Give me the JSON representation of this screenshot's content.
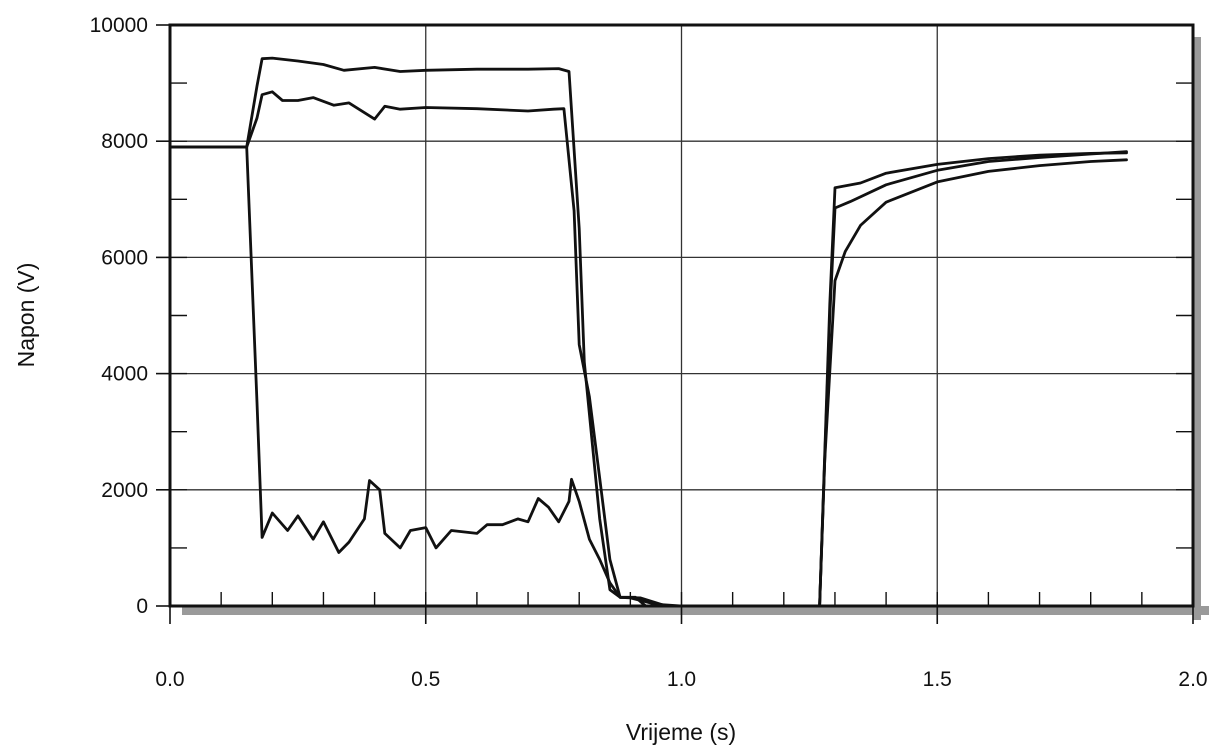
{
  "chart_data": {
    "type": "line",
    "title": "",
    "xlabel": "Vrijeme (s)",
    "ylabel": "Napon (V)",
    "xlim": [
      0,
      2.0
    ],
    "ylim": [
      0,
      10000
    ],
    "x_ticks": [
      0.0,
      0.5,
      1.0,
      1.5,
      2.0
    ],
    "x_tick_labels": [
      "0.0",
      "0.5",
      "1.0",
      "1.5",
      "2.0"
    ],
    "y_ticks": [
      0,
      2000,
      4000,
      6000,
      8000,
      10000
    ],
    "y_tick_labels": [
      "0",
      "2000",
      "4000",
      "6000",
      "8000",
      "10000"
    ],
    "grid": true,
    "legend": "none",
    "line_color": "#111111",
    "frame_shadow_color": "#9a9a9a",
    "series": [
      {
        "points": [
          [
            0.0,
            7900
          ],
          [
            0.15,
            7900
          ],
          [
            0.17,
            8950
          ],
          [
            0.18,
            9420
          ],
          [
            0.2,
            9430
          ],
          [
            0.25,
            9380
          ],
          [
            0.3,
            9320
          ],
          [
            0.34,
            9220
          ],
          [
            0.4,
            9270
          ],
          [
            0.45,
            9200
          ],
          [
            0.5,
            9220
          ],
          [
            0.6,
            9240
          ],
          [
            0.7,
            9240
          ],
          [
            0.76,
            9250
          ],
          [
            0.78,
            9200
          ],
          [
            0.8,
            6500
          ],
          [
            0.81,
            4200
          ],
          [
            0.84,
            1500
          ],
          [
            0.86,
            280
          ],
          [
            0.88,
            150
          ],
          [
            0.9,
            140
          ],
          [
            0.95,
            30
          ],
          [
            1.0,
            0
          ],
          [
            1.27,
            0
          ],
          [
            1.29,
            5200
          ],
          [
            1.3,
            7200
          ],
          [
            1.35,
            7280
          ],
          [
            1.4,
            7450
          ],
          [
            1.5,
            7600
          ],
          [
            1.6,
            7700
          ],
          [
            1.7,
            7760
          ],
          [
            1.8,
            7790
          ],
          [
            1.87,
            7800
          ]
        ]
      },
      {
        "points": [
          [
            0.0,
            7900
          ],
          [
            0.15,
            7900
          ],
          [
            0.17,
            8400
          ],
          [
            0.18,
            8800
          ],
          [
            0.2,
            8850
          ],
          [
            0.22,
            8700
          ],
          [
            0.25,
            8700
          ],
          [
            0.28,
            8750
          ],
          [
            0.32,
            8620
          ],
          [
            0.35,
            8660
          ],
          [
            0.4,
            8380
          ],
          [
            0.42,
            8600
          ],
          [
            0.45,
            8550
          ],
          [
            0.5,
            8580
          ],
          [
            0.6,
            8560
          ],
          [
            0.7,
            8520
          ],
          [
            0.75,
            8550
          ],
          [
            0.77,
            8560
          ],
          [
            0.79,
            6800
          ],
          [
            0.8,
            4500
          ],
          [
            0.82,
            3600
          ],
          [
            0.84,
            2200
          ],
          [
            0.86,
            800
          ],
          [
            0.88,
            150
          ],
          [
            0.92,
            140
          ],
          [
            0.97,
            0
          ],
          [
            1.27,
            0
          ],
          [
            1.29,
            5000
          ],
          [
            1.3,
            6850
          ],
          [
            1.33,
            6960
          ],
          [
            1.4,
            7250
          ],
          [
            1.5,
            7500
          ],
          [
            1.6,
            7650
          ],
          [
            1.7,
            7720
          ],
          [
            1.8,
            7780
          ],
          [
            1.87,
            7820
          ]
        ]
      },
      {
        "points": [
          [
            0.0,
            7900
          ],
          [
            0.15,
            7900
          ],
          [
            0.17,
            3500
          ],
          [
            0.18,
            1180
          ],
          [
            0.2,
            1600
          ],
          [
            0.23,
            1300
          ],
          [
            0.25,
            1550
          ],
          [
            0.28,
            1150
          ],
          [
            0.3,
            1450
          ],
          [
            0.33,
            920
          ],
          [
            0.35,
            1100
          ],
          [
            0.38,
            1500
          ],
          [
            0.39,
            2160
          ],
          [
            0.41,
            2000
          ],
          [
            0.42,
            1250
          ],
          [
            0.45,
            1000
          ],
          [
            0.47,
            1300
          ],
          [
            0.5,
            1350
          ],
          [
            0.52,
            1000
          ],
          [
            0.55,
            1300
          ],
          [
            0.6,
            1250
          ],
          [
            0.62,
            1400
          ],
          [
            0.65,
            1400
          ],
          [
            0.68,
            1500
          ],
          [
            0.7,
            1450
          ],
          [
            0.72,
            1850
          ],
          [
            0.74,
            1700
          ],
          [
            0.76,
            1450
          ],
          [
            0.78,
            1800
          ],
          [
            0.785,
            2180
          ],
          [
            0.8,
            1800
          ],
          [
            0.82,
            1150
          ],
          [
            0.84,
            800
          ],
          [
            0.86,
            400
          ],
          [
            0.88,
            150
          ],
          [
            0.91,
            150
          ],
          [
            0.93,
            0
          ],
          [
            1.27,
            0
          ],
          [
            1.28,
            2500
          ],
          [
            1.3,
            5600
          ],
          [
            1.32,
            6100
          ],
          [
            1.35,
            6550
          ],
          [
            1.4,
            6950
          ],
          [
            1.5,
            7300
          ],
          [
            1.6,
            7480
          ],
          [
            1.7,
            7580
          ],
          [
            1.8,
            7650
          ],
          [
            1.87,
            7680
          ]
        ]
      }
    ]
  }
}
